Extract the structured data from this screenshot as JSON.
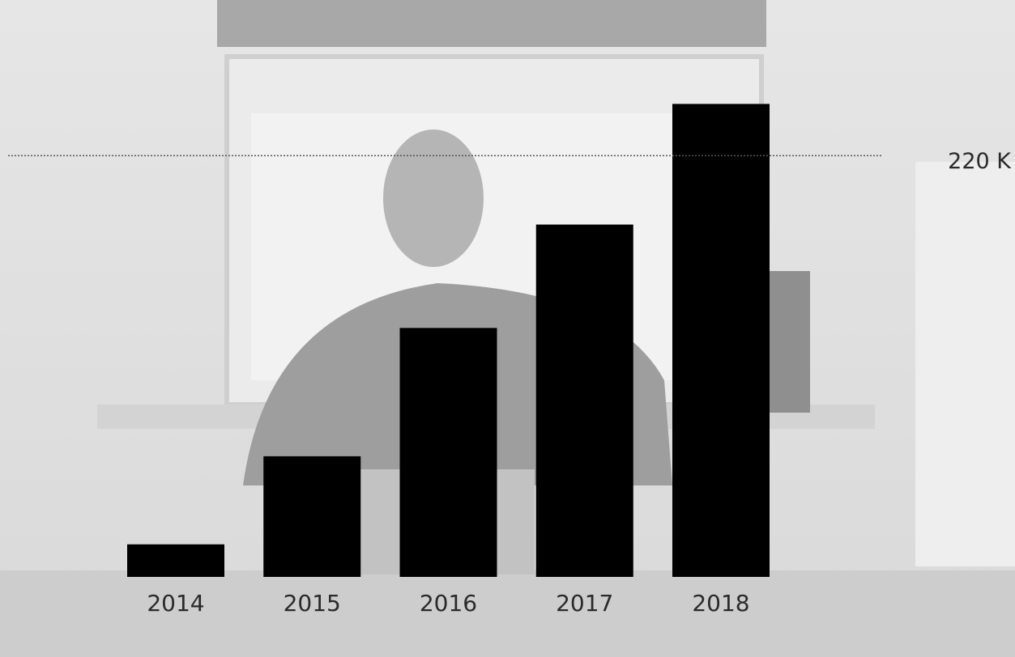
{
  "chart_data": {
    "type": "bar",
    "categories": [
      "2014",
      "2015",
      "2016",
      "2017",
      "2018"
    ],
    "values": [
      17000,
      63000,
      130000,
      184000,
      247000
    ],
    "color": "#000000",
    "ylim": [
      0,
      300000
    ],
    "yticks": [
      {
        "value": 220000,
        "label": "220 K"
      }
    ],
    "grid": true
  }
}
